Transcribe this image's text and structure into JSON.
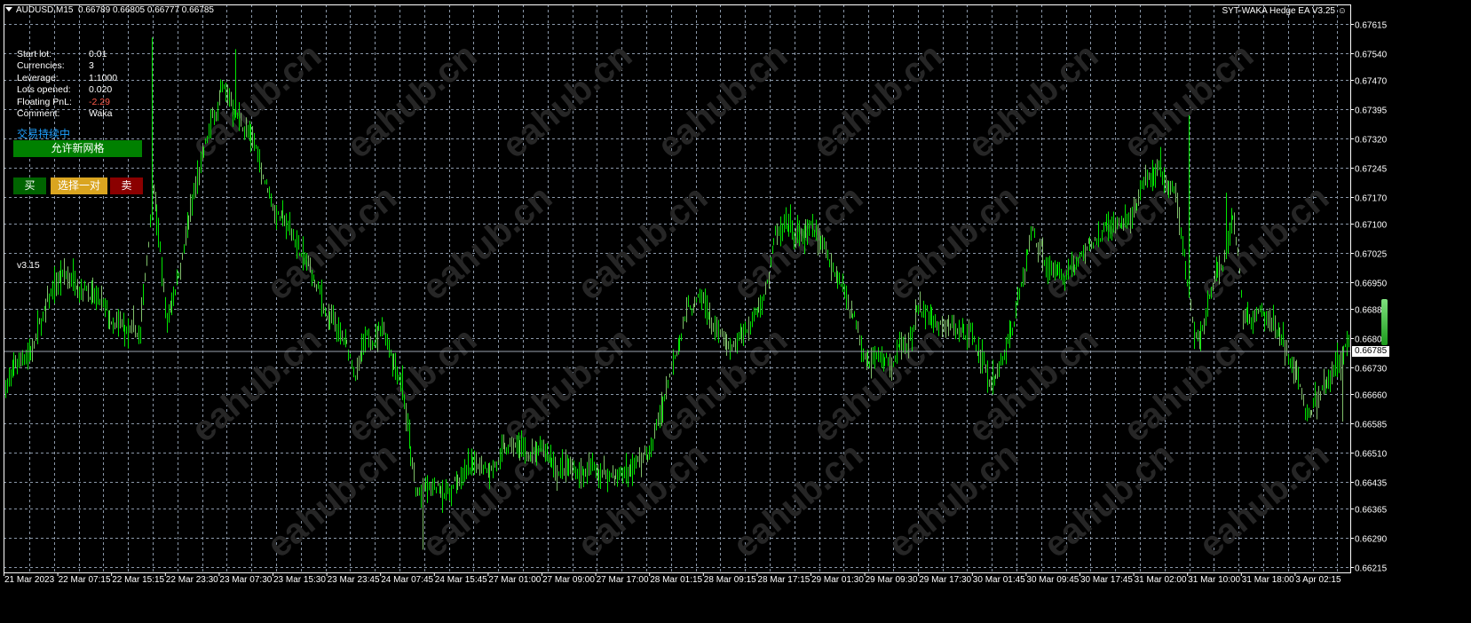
{
  "header": {
    "symbol": "AUDUSD,M15",
    "ohlc": "0.66789 0.66805 0.66777 0.66785",
    "ea_name": "SYT-WAKA Hedge EA V3.25",
    "ea_icon": "smiley-icon"
  },
  "info_panel": [
    {
      "label": "Start lot:",
      "value": "0.01"
    },
    {
      "label": "Currencies:",
      "value": "3"
    },
    {
      "label": "Leverage:",
      "value": "1:1000"
    },
    {
      "label": "Lots opened:",
      "value": "0.020"
    },
    {
      "label": "Floating PnL:",
      "value": "-2.29"
    },
    {
      "label": "Comment:",
      "value": "Waka"
    }
  ],
  "status_text": "交易持续中",
  "buttons": {
    "allow_grid": "允许新网格",
    "buy": "买",
    "select_pair": "选择一对",
    "sell": "卖"
  },
  "version": "v3.15",
  "watermark": "eahub.cn",
  "colors": {
    "bar": "#00e600",
    "grid": "#8a97a8",
    "pnl_negative": "#ff5a4a",
    "status": "#1ea0ff",
    "grid_button": "#008000",
    "buy_button": "#006400",
    "pair_button": "#daa520",
    "sell_button": "#8b0000"
  },
  "price_axis": {
    "labels": [
      "0.67615",
      "0.67540",
      "0.67470",
      "0.67395",
      "0.67320",
      "0.67245",
      "0.67170",
      "0.67100",
      "0.67025",
      "0.66950",
      "0.66880",
      "0.66805",
      "0.66730",
      "0.66660",
      "0.66585",
      "0.66510",
      "0.66435",
      "0.66365",
      "0.66290",
      "0.66215"
    ],
    "range": [
      0.66205,
      0.6766
    ],
    "current_price": "0.66785"
  },
  "time_axis": {
    "labels": [
      "21 Mar 2023",
      "22 Mar 07:15",
      "22 Mar 15:15",
      "22 Mar 23:30",
      "23 Mar 07:30",
      "23 Mar 15:30",
      "23 Mar 23:45",
      "24 Mar 07:45",
      "24 Mar 15:45",
      "27 Mar 01:00",
      "27 Mar 09:00",
      "27 Mar 17:00",
      "28 Mar 01:15",
      "28 Mar 09:15",
      "28 Mar 17:15",
      "29 Mar 01:30",
      "29 Mar 09:30",
      "29 Mar 17:30",
      "30 Mar 01:45",
      "30 Mar 09:45",
      "30 Mar 17:45",
      "31 Mar 02:00",
      "31 Mar 10:00",
      "31 Mar 18:00",
      "3 Apr 02:15"
    ]
  },
  "chart_data": {
    "type": "ohlc-bar",
    "timeframe": "M15",
    "bars_per_time_label": 32,
    "price_path": [
      [
        0,
        0.6669
      ],
      [
        16,
        0.6679
      ],
      [
        32,
        0.6695
      ],
      [
        48,
        0.6697
      ],
      [
        64,
        0.6681
      ],
      [
        80,
        0.6679
      ],
      [
        88,
        0.6722
      ],
      [
        96,
        0.6685
      ],
      [
        112,
        0.6717
      ],
      [
        128,
        0.6743
      ],
      [
        144,
        0.6734
      ],
      [
        160,
        0.6715
      ],
      [
        176,
        0.6702
      ],
      [
        192,
        0.6685
      ],
      [
        208,
        0.6672
      ],
      [
        224,
        0.6685
      ],
      [
        236,
        0.6672
      ],
      [
        244,
        0.664
      ],
      [
        256,
        0.664
      ],
      [
        272,
        0.6644
      ],
      [
        288,
        0.6649
      ],
      [
        304,
        0.6651
      ],
      [
        320,
        0.6649
      ],
      [
        336,
        0.6646
      ],
      [
        352,
        0.6646
      ],
      [
        368,
        0.6646
      ],
      [
        384,
        0.6651
      ],
      [
        397,
        0.6676
      ],
      [
        405,
        0.669
      ],
      [
        416,
        0.6688
      ],
      [
        432,
        0.6674
      ],
      [
        448,
        0.6688
      ],
      [
        458,
        0.6706
      ],
      [
        480,
        0.6706
      ],
      [
        496,
        0.6697
      ],
      [
        512,
        0.6679
      ],
      [
        528,
        0.6674
      ],
      [
        544,
        0.6688
      ],
      [
        560,
        0.6681
      ],
      [
        576,
        0.6681
      ],
      [
        588,
        0.6669
      ],
      [
        601,
        0.6688
      ],
      [
        611,
        0.6708
      ],
      [
        624,
        0.6697
      ],
      [
        640,
        0.6702
      ],
      [
        656,
        0.6708
      ],
      [
        672,
        0.6713
      ],
      [
        685,
        0.6724
      ],
      [
        696,
        0.6715
      ],
      [
        704,
        0.6692
      ],
      [
        710,
        0.6679
      ],
      [
        720,
        0.6695
      ],
      [
        731,
        0.6708
      ],
      [
        736,
        0.6685
      ],
      [
        749,
        0.6685
      ],
      [
        760,
        0.6681
      ],
      [
        773,
        0.6662
      ],
      [
        786,
        0.6667
      ],
      [
        799,
        0.66785
      ]
    ],
    "notable_highs": [
      [
        87,
        0.6758
      ],
      [
        137,
        0.6755
      ],
      [
        704,
        0.6738
      ],
      [
        726,
        0.6718
      ]
    ],
    "notable_lows": [
      [
        248,
        0.6626
      ],
      [
        795,
        0.6659
      ]
    ]
  }
}
